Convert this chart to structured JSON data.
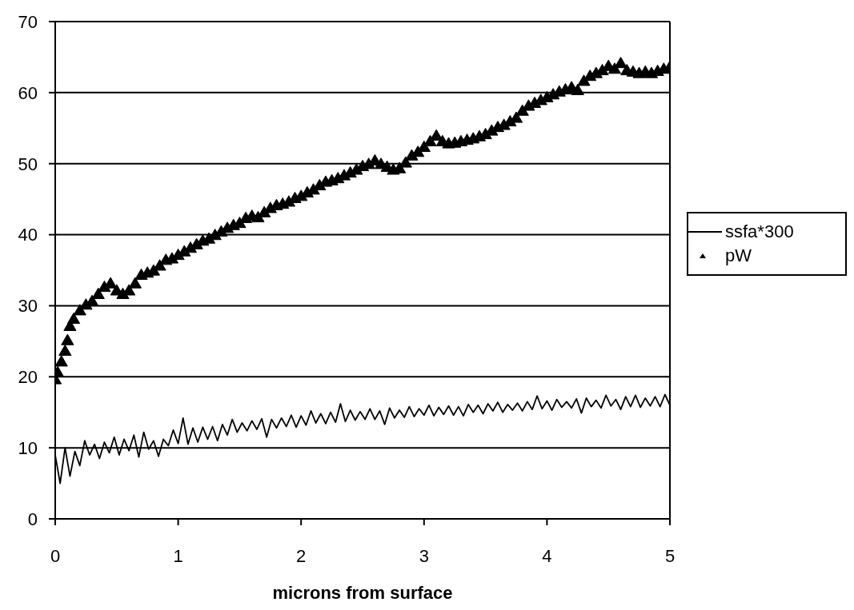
{
  "chart_data": {
    "type": "line",
    "xlabel": "microns from surface",
    "xlim": [
      0,
      5
    ],
    "xticks": [
      0,
      1,
      2,
      3,
      4,
      5
    ],
    "ylim": [
      0,
      70
    ],
    "yticks": [
      0,
      10,
      20,
      30,
      40,
      50,
      60,
      70
    ],
    "grid": "y",
    "legend": "right",
    "series": [
      {
        "name": "ssfa*300",
        "color": "#000000",
        "x": [
          0,
          0.04,
          0.08,
          0.12,
          0.16,
          0.2,
          0.24,
          0.28,
          0.32,
          0.36,
          0.4,
          0.44,
          0.48,
          0.52,
          0.56,
          0.6,
          0.64,
          0.68,
          0.72,
          0.76,
          0.8,
          0.84,
          0.88,
          0.92,
          0.96,
          1,
          1.04,
          1.08,
          1.12,
          1.16,
          1.2,
          1.24,
          1.28,
          1.32,
          1.36,
          1.4,
          1.44,
          1.48,
          1.52,
          1.56,
          1.6,
          1.64,
          1.68,
          1.72,
          1.76,
          1.8,
          1.84,
          1.88,
          1.92,
          1.96,
          2,
          2.04,
          2.08,
          2.12,
          2.16,
          2.2,
          2.24,
          2.28,
          2.32,
          2.36,
          2.4,
          2.44,
          2.48,
          2.52,
          2.56,
          2.6,
          2.64,
          2.68,
          2.72,
          2.76,
          2.8,
          2.84,
          2.88,
          2.92,
          2.96,
          3,
          3.04,
          3.08,
          3.12,
          3.16,
          3.2,
          3.24,
          3.28,
          3.32,
          3.36,
          3.4,
          3.44,
          3.48,
          3.52,
          3.56,
          3.6,
          3.64,
          3.68,
          3.72,
          3.76,
          3.8,
          3.84,
          3.88,
          3.92,
          3.96,
          4,
          4.04,
          4.08,
          4.12,
          4.16,
          4.2,
          4.24,
          4.28,
          4.32,
          4.36,
          4.4,
          4.44,
          4.48,
          4.52,
          4.56,
          4.6,
          4.64,
          4.68,
          4.72,
          4.76,
          4.8,
          4.84,
          4.88,
          4.92,
          4.96,
          5
        ],
        "values": [
          9,
          5,
          10,
          6,
          9.5,
          7.5,
          11,
          9,
          10.5,
          8.5,
          10.8,
          9.3,
          11.5,
          9,
          11.2,
          9.6,
          11.8,
          8.7,
          12.2,
          9.8,
          11,
          8.8,
          11.2,
          10.3,
          12.5,
          10.6,
          14.2,
          10.5,
          12.8,
          10.8,
          12.9,
          11.2,
          13,
          11,
          13.3,
          11.8,
          14,
          12.2,
          13.5,
          12.4,
          13.8,
          12.6,
          14.1,
          11.5,
          14,
          12.8,
          14.2,
          13,
          14.6,
          12.9,
          14.5,
          13.2,
          15.2,
          13.5,
          14.8,
          13.4,
          15,
          13.6,
          16.2,
          13.7,
          15.3,
          13.9,
          15.1,
          14,
          15.5,
          14,
          15.2,
          13.3,
          15.6,
          14.2,
          15.3,
          14.3,
          15.8,
          14.4,
          15.5,
          14.6,
          16,
          14.5,
          15.7,
          14.7,
          15.9,
          14.6,
          15.8,
          14.5,
          16.1,
          15,
          16,
          14.8,
          16.2,
          15.2,
          16.4,
          15,
          16.1,
          15.3,
          16.3,
          15.2,
          16.5,
          15.4,
          17.3,
          15.5,
          16.6,
          15.3,
          16.8,
          15.7,
          16.5,
          15.6,
          16.9,
          14.9,
          17,
          15.8,
          16.7,
          15.6,
          17.4,
          15.9,
          16.8,
          15.4,
          17.2,
          15.8,
          17.4,
          15.7,
          17,
          15.9,
          17.2,
          15.8,
          17.5,
          16
        ]
      },
      {
        "name": "pW",
        "type": "scatter",
        "marker": "triangle",
        "color": "#000000",
        "x": [
          0,
          0.02,
          0.05,
          0.08,
          0.1,
          0.12,
          0.15,
          0.2,
          0.25,
          0.3,
          0.35,
          0.4,
          0.45,
          0.5,
          0.55,
          0.6,
          0.65,
          0.7,
          0.75,
          0.8,
          0.85,
          0.9,
          0.95,
          1,
          1.05,
          1.1,
          1.15,
          1.2,
          1.25,
          1.3,
          1.35,
          1.4,
          1.45,
          1.5,
          1.55,
          1.6,
          1.65,
          1.7,
          1.75,
          1.8,
          1.85,
          1.9,
          1.95,
          2,
          2.05,
          2.1,
          2.15,
          2.2,
          2.25,
          2.3,
          2.35,
          2.4,
          2.45,
          2.5,
          2.55,
          2.6,
          2.65,
          2.7,
          2.75,
          2.8,
          2.85,
          2.9,
          2.95,
          3,
          3.05,
          3.1,
          3.15,
          3.2,
          3.25,
          3.3,
          3.35,
          3.4,
          3.45,
          3.5,
          3.55,
          3.6,
          3.65,
          3.7,
          3.75,
          3.8,
          3.85,
          3.9,
          3.95,
          4,
          4.05,
          4.1,
          4.15,
          4.2,
          4.25,
          4.3,
          4.35,
          4.4,
          4.45,
          4.5,
          4.55,
          4.6,
          4.65,
          4.7,
          4.75,
          4.8,
          4.85,
          4.9,
          4.95,
          5
        ],
        "values": [
          19.5,
          20.5,
          22,
          23.5,
          25,
          27,
          28,
          29.2,
          30,
          30.5,
          31.5,
          32.5,
          33,
          32,
          31.5,
          32,
          33,
          34.2,
          34.5,
          34.8,
          35.5,
          36.3,
          36.5,
          37,
          37.5,
          38,
          38.5,
          39,
          39.3,
          39.8,
          40.3,
          40.8,
          41.2,
          41.5,
          42.2,
          42.5,
          42.3,
          43,
          43.6,
          44,
          44.2,
          44.5,
          45,
          45.3,
          45.8,
          46.2,
          46.8,
          47.3,
          47.5,
          47.8,
          48.2,
          48.6,
          49,
          49.5,
          49.8,
          50.3,
          49.8,
          49.4,
          49,
          49.2,
          50,
          51,
          51.5,
          52.2,
          53,
          53.8,
          53,
          52.7,
          52.8,
          53,
          53.2,
          53.4,
          53.7,
          54,
          54.5,
          55,
          55.3,
          55.8,
          56.3,
          57.3,
          58,
          58.4,
          58.8,
          59.2,
          59.6,
          60,
          60.3,
          60.6,
          60.2,
          61.5,
          62.2,
          62.6,
          63,
          63.6,
          63.2,
          64,
          63,
          62.8,
          62.6,
          62.8,
          62.6,
          62.9,
          63.2,
          63.5
        ]
      }
    ]
  }
}
